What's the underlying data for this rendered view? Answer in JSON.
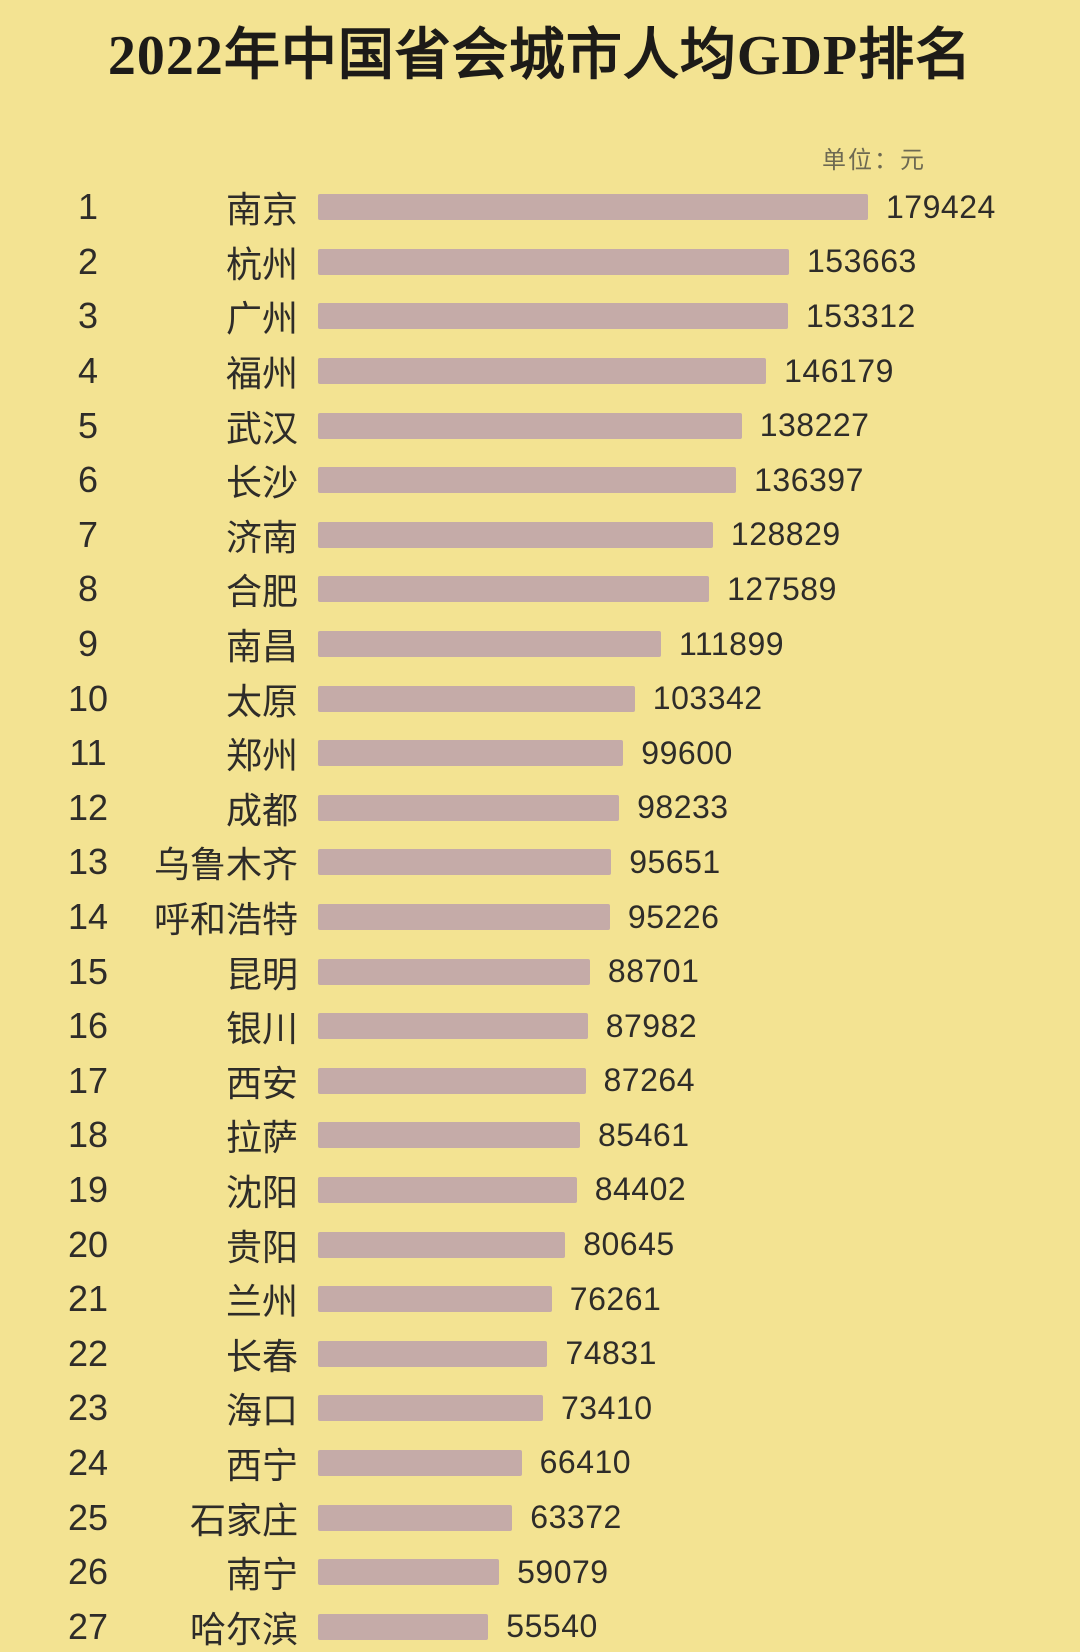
{
  "title": "2022年中国省会城市人均GDP排名",
  "unit_label": "单位：元",
  "colors": {
    "background": "#f3e392",
    "bar": "#c5aba8",
    "text": "#2e2c29",
    "unit_text": "#6d6952"
  },
  "chart_data": {
    "type": "bar",
    "orientation": "horizontal",
    "title": "2022年中国省会城市人均GDP排名",
    "unit": "元",
    "xlim": [
      0,
      179424
    ],
    "grid": false,
    "legend": false,
    "value_labels": "end-of-bar",
    "rows": [
      {
        "rank": 1,
        "city": "南京",
        "value": 179424
      },
      {
        "rank": 2,
        "city": "杭州",
        "value": 153663
      },
      {
        "rank": 3,
        "city": "广州",
        "value": 153312
      },
      {
        "rank": 4,
        "city": "福州",
        "value": 146179
      },
      {
        "rank": 5,
        "city": "武汉",
        "value": 138227
      },
      {
        "rank": 6,
        "city": "长沙",
        "value": 136397
      },
      {
        "rank": 7,
        "city": "济南",
        "value": 128829
      },
      {
        "rank": 8,
        "city": "合肥",
        "value": 127589
      },
      {
        "rank": 9,
        "city": "南昌",
        "value": 111899
      },
      {
        "rank": 10,
        "city": "太原",
        "value": 103342
      },
      {
        "rank": 11,
        "city": "郑州",
        "value": 99600
      },
      {
        "rank": 12,
        "city": "成都",
        "value": 98233
      },
      {
        "rank": 13,
        "city": "乌鲁木齐",
        "value": 95651
      },
      {
        "rank": 14,
        "city": "呼和浩特",
        "value": 95226
      },
      {
        "rank": 15,
        "city": "昆明",
        "value": 88701
      },
      {
        "rank": 16,
        "city": "银川",
        "value": 87982
      },
      {
        "rank": 17,
        "city": "西安",
        "value": 87264
      },
      {
        "rank": 18,
        "city": "拉萨",
        "value": 85461
      },
      {
        "rank": 19,
        "city": "沈阳",
        "value": 84402
      },
      {
        "rank": 20,
        "city": "贵阳",
        "value": 80645
      },
      {
        "rank": 21,
        "city": "兰州",
        "value": 76261
      },
      {
        "rank": 22,
        "city": "长春",
        "value": 74831
      },
      {
        "rank": 23,
        "city": "海口",
        "value": 73410
      },
      {
        "rank": 24,
        "city": "西宁",
        "value": 66410
      },
      {
        "rank": 25,
        "city": "石家庄",
        "value": 63372
      },
      {
        "rank": 26,
        "city": "南宁",
        "value": 59079
      },
      {
        "rank": 27,
        "city": "哈尔滨",
        "value": 55540
      }
    ]
  }
}
